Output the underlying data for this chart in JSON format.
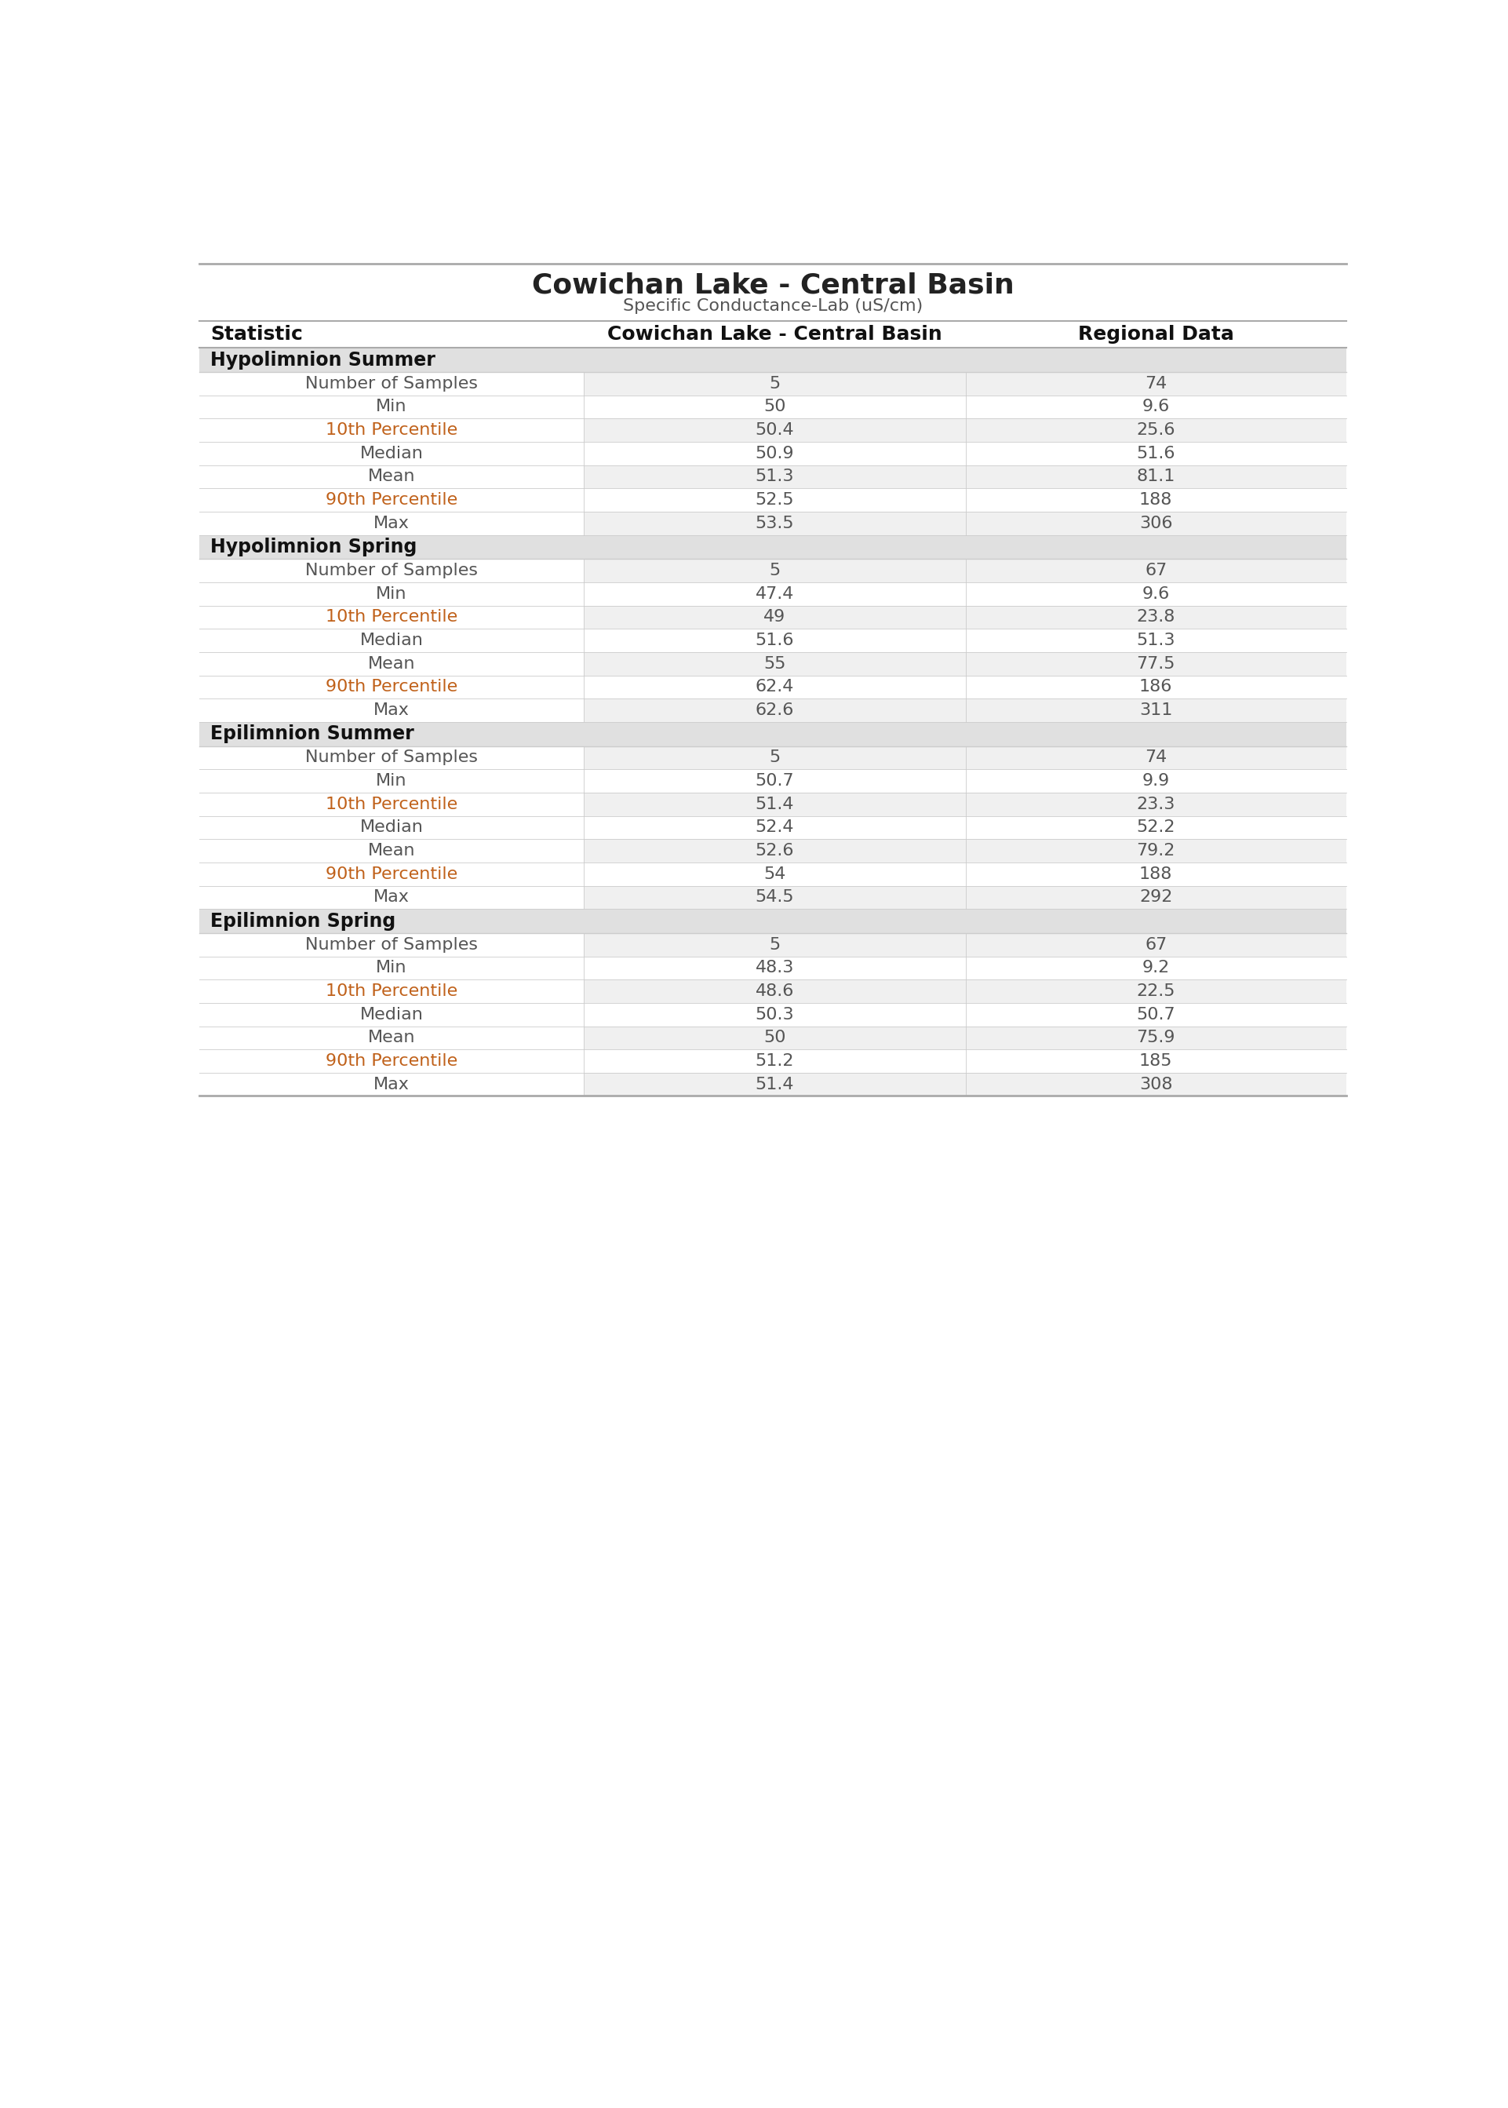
{
  "title": "Cowichan Lake - Central Basin",
  "subtitle": "Specific Conductance-Lab (uS/cm)",
  "col_headers": [
    "Statistic",
    "Cowichan Lake - Central Basin",
    "Regional Data"
  ],
  "sections": [
    {
      "header": "Hypolimnion Summer",
      "rows": [
        [
          "Number of Samples",
          "5",
          "74"
        ],
        [
          "Min",
          "50",
          "9.6"
        ],
        [
          "10th Percentile",
          "50.4",
          "25.6"
        ],
        [
          "Median",
          "50.9",
          "51.6"
        ],
        [
          "Mean",
          "51.3",
          "81.1"
        ],
        [
          "90th Percentile",
          "52.5",
          "188"
        ],
        [
          "Max",
          "53.5",
          "306"
        ]
      ]
    },
    {
      "header": "Hypolimnion Spring",
      "rows": [
        [
          "Number of Samples",
          "5",
          "67"
        ],
        [
          "Min",
          "47.4",
          "9.6"
        ],
        [
          "10th Percentile",
          "49",
          "23.8"
        ],
        [
          "Median",
          "51.6",
          "51.3"
        ],
        [
          "Mean",
          "55",
          "77.5"
        ],
        [
          "90th Percentile",
          "62.4",
          "186"
        ],
        [
          "Max",
          "62.6",
          "311"
        ]
      ]
    },
    {
      "header": "Epilimnion Summer",
      "rows": [
        [
          "Number of Samples",
          "5",
          "74"
        ],
        [
          "Min",
          "50.7",
          "9.9"
        ],
        [
          "10th Percentile",
          "51.4",
          "23.3"
        ],
        [
          "Median",
          "52.4",
          "52.2"
        ],
        [
          "Mean",
          "52.6",
          "79.2"
        ],
        [
          "90th Percentile",
          "54",
          "188"
        ],
        [
          "Max",
          "54.5",
          "292"
        ]
      ]
    },
    {
      "header": "Epilimnion Spring",
      "rows": [
        [
          "Number of Samples",
          "5",
          "67"
        ],
        [
          "Min",
          "48.3",
          "9.2"
        ],
        [
          "10th Percentile",
          "48.6",
          "22.5"
        ],
        [
          "Median",
          "50.3",
          "50.7"
        ],
        [
          "Mean",
          "50",
          "75.9"
        ],
        [
          "90th Percentile",
          "51.2",
          "185"
        ],
        [
          "Max",
          "51.4",
          "308"
        ]
      ]
    }
  ],
  "colors": {
    "section_bg": "#e0e0e0",
    "row_bg_light": "#f0f0f0",
    "row_bg_white": "#ffffff",
    "title_color": "#222222",
    "subtitle_color": "#555555",
    "col_header_color": "#111111",
    "section_header_color": "#111111",
    "stat_color_normal": "#555555",
    "stat_color_percentile": "#c0611a",
    "value_color": "#555555",
    "border_color": "#cccccc",
    "strong_border_color": "#aaaaaa"
  },
  "font_sizes": {
    "title": 26,
    "subtitle": 16,
    "col_header": 18,
    "section_header": 17,
    "data_row": 16
  },
  "col_splits": [
    0.335,
    0.668
  ]
}
